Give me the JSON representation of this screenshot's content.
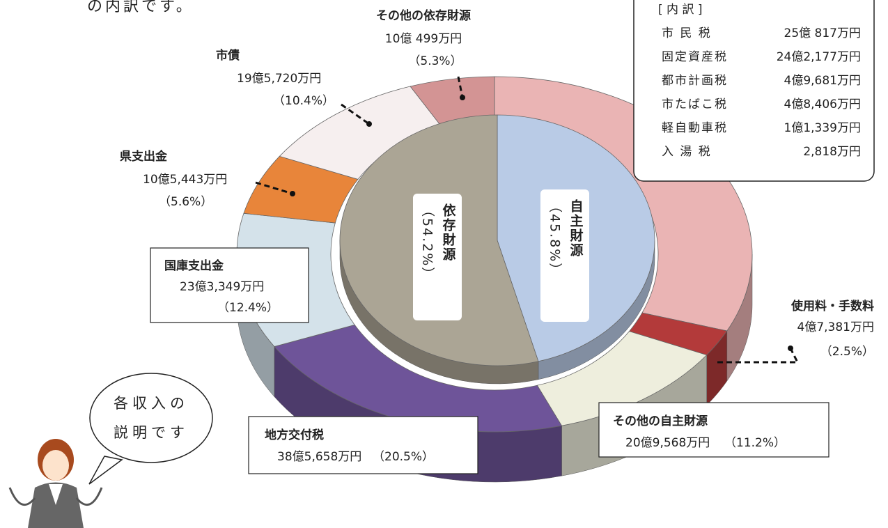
{
  "note": "の内訳です。",
  "chart_data": {
    "type": "pie",
    "outer": {
      "categories": [
        null,
        "使用料・手数料",
        "その他の自主財源",
        "地方交付税",
        "国庫支出金",
        "県支出金",
        "市債",
        "その他の依存財源"
      ],
      "values": [
        32.1,
        2.5,
        11.2,
        20.5,
        12.4,
        5.6,
        10.4,
        5.3
      ],
      "value_labels": [
        null,
        "（2.5%）",
        "（11.2%）",
        "（20.5%）",
        "（12.4%）",
        "（5.6%）",
        "（10.4%）",
        "（5.3%）"
      ],
      "amount_labels": [
        null,
        "4億7,381万円",
        "20億9,568万円",
        "38億5,658万円",
        "23億3,349万円",
        "10億5,443万円",
        "19億5,720万円",
        "10億 499万円"
      ],
      "colors": [
        "#eab4b4",
        "#b33a3a",
        "#eeeedd",
        "#6e5499",
        "#d4e2ea",
        "#e8853a",
        "#f6efef",
        "#d39494"
      ]
    },
    "inner": {
      "categories": [
        "自主財源",
        "依存財源"
      ],
      "values": [
        45.8,
        54.2
      ],
      "value_labels": [
        "（45.8%）",
        "（54.2%）"
      ],
      "colors": [
        "#b9cbe6",
        "#aba595"
      ]
    }
  },
  "breakdown": {
    "title": "[ 内 訳 ]",
    "rows": [
      [
        "市 民 税",
        "25億 817万円"
      ],
      [
        "固定資産税",
        "24億2,177万円"
      ],
      [
        "都市計画税",
        "4億9,681万円"
      ],
      [
        "市たばこ税",
        "4億8,406万円"
      ],
      [
        "軽自動車税",
        "1億1,339万円"
      ],
      [
        "入 湯 税",
        "2,818万円"
      ]
    ]
  },
  "bubble": {
    "lines": [
      "各収入の",
      "説明です"
    ]
  }
}
